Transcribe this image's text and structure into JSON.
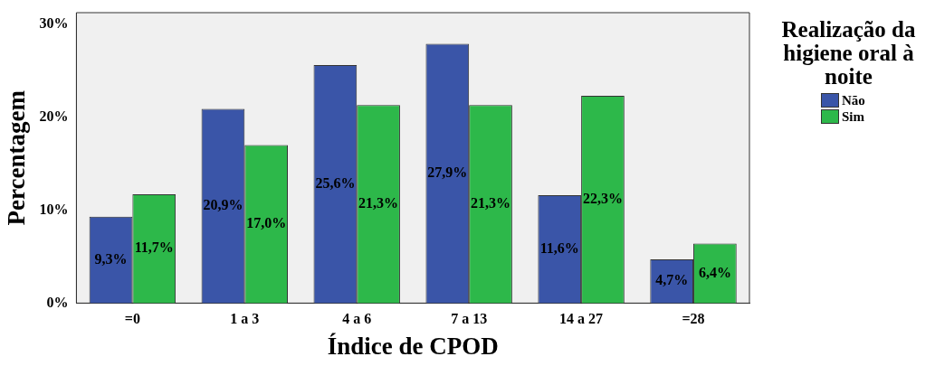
{
  "chart_data": {
    "type": "bar",
    "xlabel": "Índice de CPOD",
    "ylabel": "Percentagem",
    "legend_title": "Realização da higiene oral à noite",
    "legend": "top right",
    "grid": false,
    "categories": [
      "=0",
      "1 a 3",
      "4 a 6",
      "7 a 13",
      "14 a 27",
      "=28"
    ],
    "ylim": [
      0,
      31.25
    ],
    "yticks": [
      {
        "value": 0,
        "label": "0%"
      },
      {
        "value": 10,
        "label": "10%"
      },
      {
        "value": 20,
        "label": "20%"
      },
      {
        "value": 30,
        "label": "30%"
      }
    ],
    "series": [
      {
        "name": "Não",
        "color": "#3a55a8",
        "values": [
          9.3,
          20.9,
          25.6,
          27.9,
          11.6,
          4.7
        ],
        "value_labels": [
          "9,3%",
          "20,9%",
          "25,6%",
          "27,9%",
          "11,6%",
          "4,7%"
        ]
      },
      {
        "name": "Sim",
        "color": "#2db84a",
        "values": [
          11.7,
          17.0,
          21.3,
          21.3,
          22.3,
          6.4
        ],
        "value_labels": [
          "11,7%",
          "17,0%",
          "21,3%",
          "21,3%",
          "22,3%",
          "6,4%"
        ]
      }
    ]
  }
}
